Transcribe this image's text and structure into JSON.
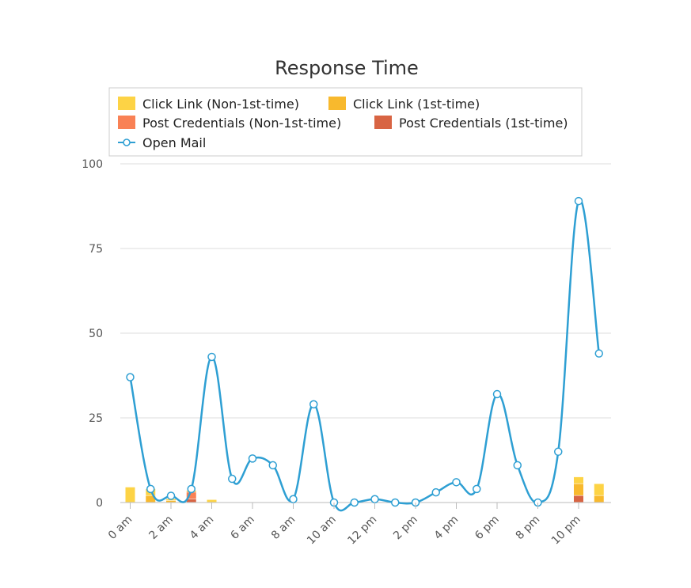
{
  "chart_data": {
    "type": "bar",
    "title": "Response Time",
    "xlabel": "",
    "ylabel": "",
    "ylim": [
      0,
      100
    ],
    "yticks": [
      "0",
      "25",
      "50",
      "75",
      "100"
    ],
    "x_tick_labels": [
      "0 am",
      "2 am",
      "4 am",
      "6 am",
      "8 am",
      "10 am",
      "12 pm",
      "2 pm",
      "4 pm",
      "6 pm",
      "8 pm",
      "10 pm"
    ],
    "hours": [
      0,
      1,
      2,
      3,
      4,
      5,
      6,
      7,
      8,
      9,
      10,
      11,
      12,
      13,
      14,
      15,
      16,
      17,
      18,
      19,
      20,
      21,
      22,
      23
    ],
    "legend_position": "top",
    "grid": true,
    "series": [
      {
        "name": "Click Link (Non-1st-time)",
        "kind": "bar",
        "color": "#fdd345",
        "values": [
          4.5,
          2,
          0.5,
          0,
          0.8,
          0,
          0,
          0,
          0,
          0,
          0,
          0,
          0,
          0,
          0,
          0,
          0,
          0,
          0,
          0,
          0,
          0,
          2,
          3.5
        ]
      },
      {
        "name": "Click Link (1st-time)",
        "kind": "bar",
        "color": "#f8b92d",
        "values": [
          0,
          2,
          0.5,
          0.5,
          0,
          0,
          0,
          0,
          0,
          0,
          0,
          0,
          0,
          0,
          0,
          0,
          0,
          0,
          0,
          0,
          0,
          0,
          3.5,
          2
        ]
      },
      {
        "name": "Post Credentials (Non-1st-time)",
        "kind": "bar",
        "color": "#f98155",
        "values": [
          0,
          0,
          0,
          2,
          0,
          0,
          0,
          0,
          0,
          0,
          0,
          0,
          0,
          0,
          0,
          0,
          0,
          0,
          0,
          0,
          0,
          0,
          0,
          0
        ]
      },
      {
        "name": "Post Credentials (1st-time)",
        "kind": "bar",
        "color": "#d86443",
        "values": [
          0,
          0,
          0,
          1,
          0,
          0,
          0,
          0,
          0,
          0,
          0,
          0,
          0,
          0,
          0,
          0,
          0,
          0,
          0,
          0,
          0,
          0,
          2,
          0
        ]
      },
      {
        "name": "Open Mail",
        "kind": "line",
        "color": "#2e9fd3",
        "values": [
          37,
          4,
          2,
          4,
          43,
          7,
          13,
          11,
          1,
          29,
          0,
          0,
          1,
          0,
          0,
          3,
          6,
          4,
          32,
          11,
          0,
          15,
          89,
          44
        ]
      }
    ]
  }
}
